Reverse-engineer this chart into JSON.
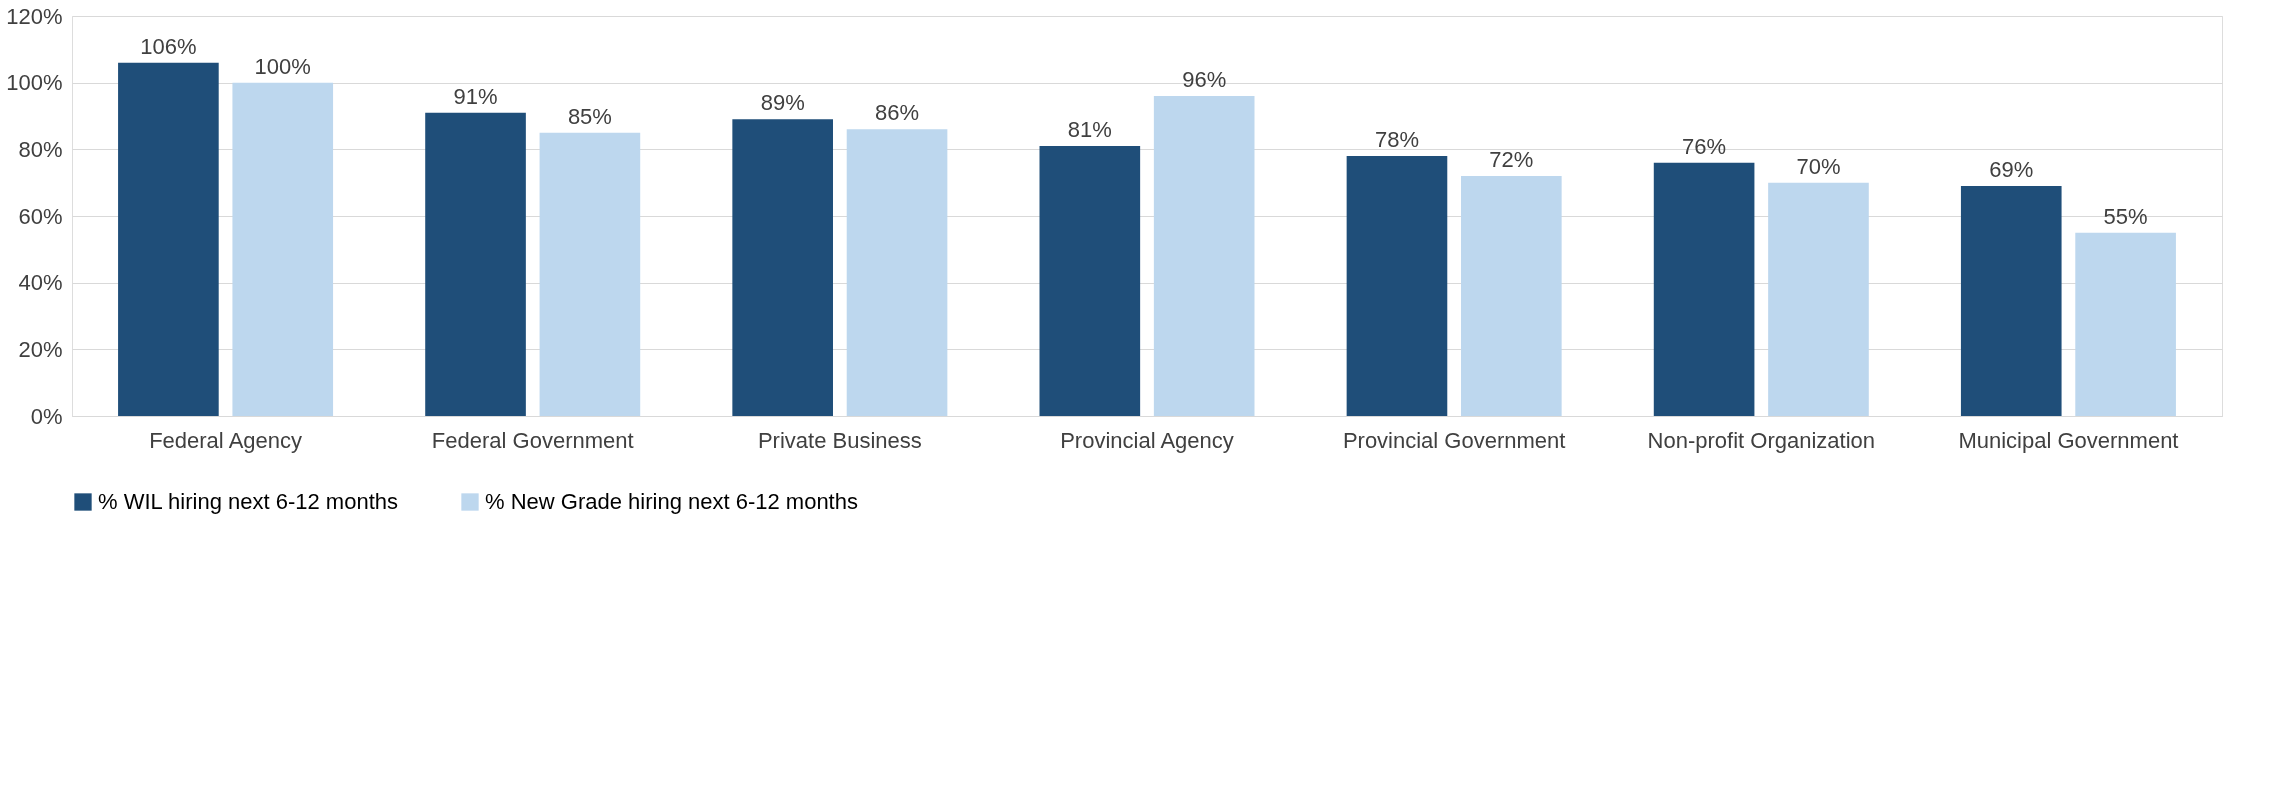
{
  "chart_data": {
    "type": "bar",
    "categories": [
      "Federal Agency",
      "Federal Government",
      "Private Business",
      "Provincial Agency",
      "Provincial Government",
      "Non-profit Organization",
      "Municipal Government"
    ],
    "series": [
      {
        "name": "% WIL hiring next 6-12 months",
        "color": "#1f4e79",
        "values": [
          106,
          91,
          89,
          81,
          78,
          76,
          69
        ],
        "value_labels": [
          "106%",
          "91%",
          "89%",
          "81%",
          "78%",
          "76%",
          "69%"
        ]
      },
      {
        "name": "% New Grade hiring next 6-12 months",
        "color": "#bdd7ee",
        "values": [
          100,
          85,
          86,
          96,
          72,
          70,
          55
        ],
        "value_labels": [
          "100%",
          "85%",
          "86%",
          "96%",
          "72%",
          "70%",
          "55%"
        ]
      }
    ],
    "ylim": [
      0,
      120
    ],
    "yticks": [
      {
        "value": 0,
        "label": "0%"
      },
      {
        "value": 20,
        "label": "20%"
      },
      {
        "value": 40,
        "label": "40%"
      },
      {
        "value": 60,
        "label": "60%"
      },
      {
        "value": 80,
        "label": "80%"
      },
      {
        "value": 100,
        "label": "100%"
      },
      {
        "value": 120,
        "label": "120%"
      }
    ],
    "grid": "y",
    "legend": "bottom"
  }
}
